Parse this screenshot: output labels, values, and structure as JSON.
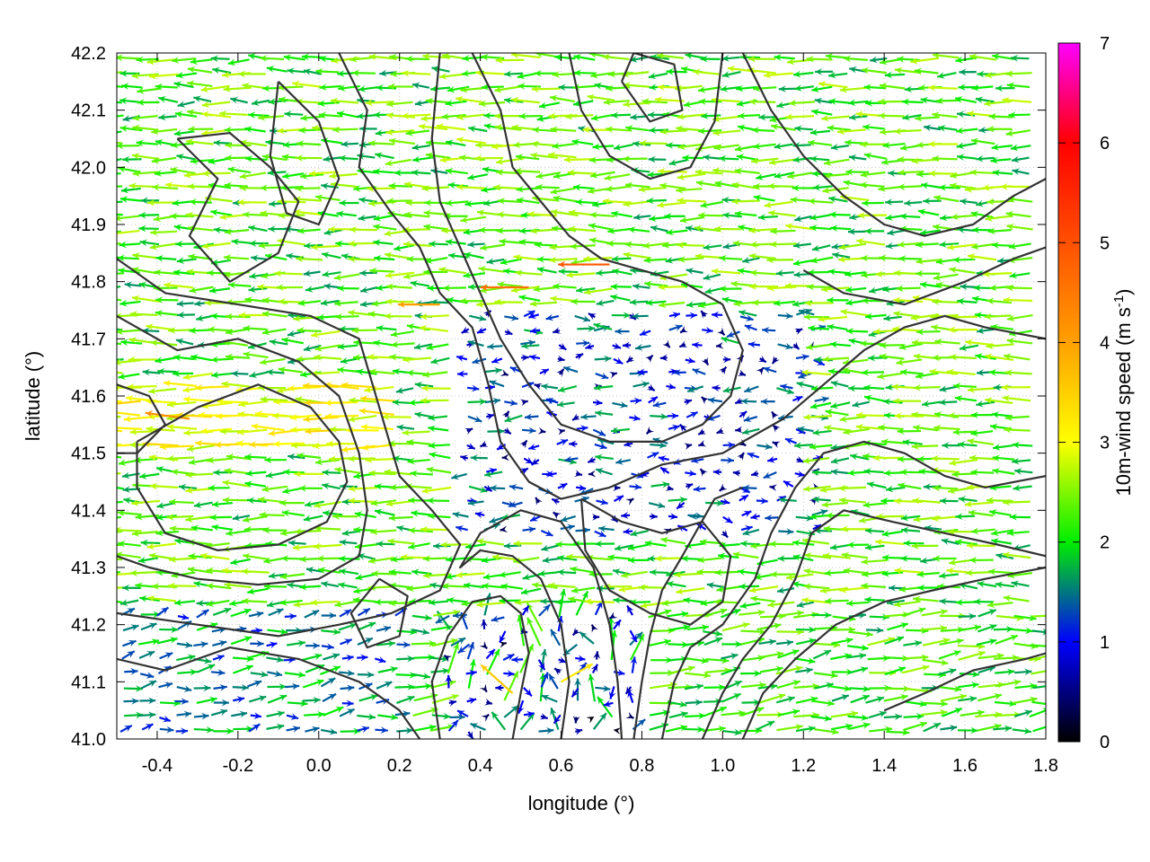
{
  "chart_data": {
    "type": "vector-field",
    "xlabel": "longitude (°)",
    "ylabel": "latitude (°)",
    "xlim": [
      -0.5,
      1.8
    ],
    "ylim": [
      41.0,
      42.2
    ],
    "x_ticks": [
      "-0.4",
      "-0.2",
      "0.0",
      "0.2",
      "0.4",
      "0.6",
      "0.8",
      "1.0",
      "1.2",
      "1.4",
      "1.6",
      "1.8"
    ],
    "y_ticks": [
      "41.0",
      "41.1",
      "41.2",
      "41.3",
      "41.4",
      "41.5",
      "41.6",
      "41.7",
      "41.8",
      "41.9",
      "42.0",
      "42.1",
      "42.2"
    ],
    "grid": true,
    "colorbar": {
      "label_main": "10m-wind speed (m s",
      "label_exp": "-1",
      "label_close": ")",
      "range": [
        0,
        7
      ],
      "ticks": [
        "0",
        "1",
        "2",
        "3",
        "4",
        "5",
        "6",
        "7"
      ],
      "palette": [
        {
          "value": 0,
          "color": "#000000"
        },
        {
          "value": 1,
          "color": "#0000ff"
        },
        {
          "value": 2,
          "color": "#00ee00"
        },
        {
          "value": 3,
          "color": "#ffff00"
        },
        {
          "value": 4,
          "color": "#ffa000"
        },
        {
          "value": 5,
          "color": "#ff5000"
        },
        {
          "value": 6,
          "color": "#ff0000"
        },
        {
          "value": 7,
          "color": "#ff00ff"
        }
      ]
    },
    "contour_color": "#333333",
    "contours": [
      [
        [
          -0.45,
          41.52
        ],
        [
          -0.3,
          41.58
        ],
        [
          -0.15,
          41.62
        ],
        [
          -0.02,
          41.58
        ],
        [
          0.05,
          41.52
        ],
        [
          0.07,
          41.45
        ],
        [
          0.02,
          41.38
        ],
        [
          -0.1,
          41.34
        ],
        [
          -0.25,
          41.33
        ],
        [
          -0.38,
          41.36
        ],
        [
          -0.45,
          41.44
        ],
        [
          -0.45,
          41.52
        ]
      ],
      [
        [
          -0.5,
          41.74
        ],
        [
          -0.35,
          41.68
        ],
        [
          -0.2,
          41.7
        ],
        [
          -0.05,
          41.66
        ],
        [
          0.05,
          41.6
        ],
        [
          0.1,
          41.5
        ],
        [
          0.12,
          41.4
        ],
        [
          0.1,
          41.32
        ],
        [
          0.0,
          41.28
        ],
        [
          -0.15,
          41.27
        ],
        [
          -0.3,
          41.28
        ],
        [
          -0.42,
          41.3
        ],
        [
          -0.5,
          41.32
        ]
      ],
      [
        [
          -0.5,
          41.84
        ],
        [
          -0.38,
          41.78
        ],
        [
          -0.2,
          41.76
        ],
        [
          -0.02,
          41.74
        ],
        [
          0.1,
          41.7
        ],
        [
          0.15,
          41.58
        ],
        [
          0.2,
          41.46
        ],
        [
          0.28,
          41.4
        ],
        [
          0.35,
          41.34
        ],
        [
          0.3,
          41.26
        ],
        [
          0.18,
          41.22
        ],
        [
          0.05,
          41.2
        ],
        [
          -0.1,
          41.18
        ],
        [
          -0.3,
          41.2
        ],
        [
          -0.5,
          41.22
        ]
      ],
      [
        [
          -0.5,
          41.14
        ],
        [
          -0.38,
          41.12
        ],
        [
          -0.22,
          41.16
        ],
        [
          -0.05,
          41.14
        ],
        [
          0.1,
          41.1
        ],
        [
          0.2,
          41.05
        ],
        [
          0.25,
          41.0
        ]
      ],
      [
        [
          -0.35,
          42.05
        ],
        [
          -0.25,
          41.98
        ],
        [
          -0.32,
          41.88
        ],
        [
          -0.22,
          41.8
        ],
        [
          -0.1,
          41.85
        ],
        [
          -0.05,
          41.94
        ],
        [
          -0.12,
          42.0
        ],
        [
          -0.22,
          42.06
        ],
        [
          -0.35,
          42.05
        ]
      ],
      [
        [
          -0.1,
          42.15
        ],
        [
          0.0,
          42.08
        ],
        [
          0.05,
          41.98
        ],
        [
          0.0,
          41.9
        ],
        [
          -0.08,
          41.92
        ],
        [
          -0.12,
          42.02
        ],
        [
          -0.1,
          42.15
        ]
      ],
      [
        [
          0.05,
          42.2
        ],
        [
          0.12,
          42.1
        ],
        [
          0.1,
          42.0
        ],
        [
          0.18,
          41.92
        ],
        [
          0.25,
          41.86
        ],
        [
          0.3,
          41.78
        ],
        [
          0.38,
          41.72
        ],
        [
          0.42,
          41.62
        ],
        [
          0.45,
          41.52
        ],
        [
          0.52,
          41.45
        ],
        [
          0.6,
          41.42
        ],
        [
          0.72,
          41.44
        ],
        [
          0.85,
          41.48
        ],
        [
          1.0,
          41.5
        ],
        [
          1.15,
          41.56
        ],
        [
          1.25,
          41.62
        ],
        [
          1.35,
          41.68
        ],
        [
          1.45,
          41.72
        ],
        [
          1.55,
          41.74
        ],
        [
          1.65,
          41.72
        ],
        [
          1.8,
          41.7
        ]
      ],
      [
        [
          0.38,
          42.2
        ],
        [
          0.45,
          42.1
        ],
        [
          0.48,
          42.0
        ],
        [
          0.55,
          41.94
        ],
        [
          0.62,
          41.88
        ],
        [
          0.7,
          41.84
        ],
        [
          0.8,
          41.82
        ],
        [
          0.9,
          41.8
        ],
        [
          1.0,
          41.76
        ],
        [
          1.05,
          41.68
        ],
        [
          1.02,
          41.6
        ],
        [
          0.95,
          41.55
        ],
        [
          0.85,
          41.52
        ],
        [
          0.72,
          41.52
        ],
        [
          0.6,
          41.55
        ],
        [
          0.52,
          41.62
        ],
        [
          0.45,
          41.7
        ],
        [
          0.4,
          41.78
        ],
        [
          0.35,
          41.86
        ],
        [
          0.3,
          41.94
        ],
        [
          0.28,
          42.05
        ],
        [
          0.3,
          42.2
        ]
      ],
      [
        [
          0.62,
          42.2
        ],
        [
          0.65,
          42.1
        ],
        [
          0.72,
          42.02
        ],
        [
          0.82,
          41.98
        ],
        [
          0.92,
          42.0
        ],
        [
          0.98,
          42.08
        ],
        [
          1.0,
          42.2
        ]
      ],
      [
        [
          0.75,
          42.15
        ],
        [
          0.82,
          42.08
        ],
        [
          0.9,
          42.1
        ],
        [
          0.88,
          42.18
        ],
        [
          0.78,
          42.2
        ],
        [
          0.75,
          42.15
        ]
      ],
      [
        [
          1.05,
          42.2
        ],
        [
          1.12,
          42.1
        ],
        [
          1.2,
          42.02
        ],
        [
          1.3,
          41.95
        ],
        [
          1.4,
          41.9
        ],
        [
          1.5,
          41.88
        ],
        [
          1.62,
          41.9
        ],
        [
          1.72,
          41.95
        ],
        [
          1.8,
          41.98
        ]
      ],
      [
        [
          1.2,
          41.82
        ],
        [
          1.3,
          41.78
        ],
        [
          1.45,
          41.76
        ],
        [
          1.6,
          41.8
        ],
        [
          1.72,
          41.84
        ],
        [
          1.8,
          41.86
        ]
      ],
      [
        [
          0.65,
          41.42
        ],
        [
          0.75,
          41.38
        ],
        [
          0.85,
          41.36
        ],
        [
          0.95,
          41.38
        ],
        [
          1.02,
          41.32
        ],
        [
          1.0,
          41.24
        ],
        [
          0.92,
          41.2
        ],
        [
          0.82,
          41.22
        ],
        [
          0.72,
          41.26
        ],
        [
          0.66,
          41.33
        ],
        [
          0.65,
          41.42
        ]
      ],
      [
        [
          0.48,
          41.0
        ],
        [
          0.5,
          41.08
        ],
        [
          0.52,
          41.15
        ],
        [
          0.5,
          41.22
        ],
        [
          0.45,
          41.25
        ],
        [
          0.38,
          41.24
        ],
        [
          0.32,
          41.18
        ],
        [
          0.28,
          41.1
        ],
        [
          0.3,
          41.0
        ]
      ],
      [
        [
          0.6,
          41.0
        ],
        [
          0.62,
          41.1
        ],
        [
          0.6,
          41.2
        ],
        [
          0.55,
          41.28
        ],
        [
          0.48,
          41.32
        ],
        [
          0.4,
          41.33
        ],
        [
          0.35,
          41.3
        ],
        [
          0.4,
          41.36
        ],
        [
          0.5,
          41.4
        ],
        [
          0.6,
          41.38
        ],
        [
          0.68,
          41.3
        ],
        [
          0.72,
          41.2
        ],
        [
          0.74,
          41.1
        ],
        [
          0.75,
          41.0
        ]
      ],
      [
        [
          0.78,
          41.0
        ],
        [
          0.8,
          41.1
        ],
        [
          0.82,
          41.18
        ],
        [
          0.85,
          41.26
        ],
        [
          0.9,
          41.32
        ],
        [
          0.98,
          41.42
        ],
        [
          1.05,
          41.44
        ]
      ],
      [
        [
          0.85,
          41.0
        ],
        [
          0.88,
          41.1
        ],
        [
          0.92,
          41.16
        ],
        [
          1.0,
          41.2
        ],
        [
          1.08,
          41.28
        ],
        [
          1.12,
          41.36
        ],
        [
          1.18,
          41.44
        ],
        [
          1.25,
          41.5
        ],
        [
          1.35,
          41.52
        ],
        [
          1.45,
          41.5
        ],
        [
          1.55,
          41.46
        ],
        [
          1.65,
          41.44
        ],
        [
          1.8,
          41.46
        ]
      ],
      [
        [
          0.95,
          41.0
        ],
        [
          1.0,
          41.08
        ],
        [
          1.05,
          41.14
        ],
        [
          1.12,
          41.2
        ],
        [
          1.18,
          41.28
        ],
        [
          1.22,
          41.36
        ],
        [
          1.3,
          41.4
        ],
        [
          1.42,
          41.38
        ],
        [
          1.55,
          41.36
        ],
        [
          1.68,
          41.34
        ],
        [
          1.8,
          41.32
        ]
      ],
      [
        [
          1.05,
          41.0
        ],
        [
          1.1,
          41.08
        ],
        [
          1.18,
          41.14
        ],
        [
          1.28,
          41.2
        ],
        [
          1.4,
          41.24
        ],
        [
          1.52,
          41.26
        ],
        [
          1.65,
          41.28
        ],
        [
          1.8,
          41.3
        ]
      ],
      [
        [
          1.4,
          41.05
        ],
        [
          1.5,
          41.08
        ],
        [
          1.62,
          41.12
        ],
        [
          1.75,
          41.14
        ],
        [
          1.8,
          41.15
        ]
      ],
      [
        [
          -0.5,
          41.62
        ],
        [
          -0.42,
          41.6
        ],
        [
          -0.38,
          41.55
        ],
        [
          -0.45,
          41.5
        ],
        [
          -0.5,
          41.5
        ]
      ],
      [
        [
          0.15,
          41.28
        ],
        [
          0.22,
          41.25
        ],
        [
          0.2,
          41.18
        ],
        [
          0.12,
          41.16
        ],
        [
          0.08,
          41.22
        ],
        [
          0.15,
          41.28
        ]
      ]
    ],
    "arrow_field": {
      "dx": 0.045,
      "dy": 0.025,
      "scale_deg_per_ms": 0.026
    },
    "highlighted_arrows": [
      {
        "lon": 0.72,
        "lat": 41.83,
        "u": -4.9,
        "v": 0.0
      },
      {
        "lon": 0.52,
        "lat": 41.79,
        "u": -4.6,
        "v": 0.0
      },
      {
        "lon": 0.48,
        "lat": 41.08,
        "u": -3.0,
        "v": 1.9
      },
      {
        "lon": 0.6,
        "lat": 41.1,
        "u": 3.0,
        "v": 1.2
      },
      {
        "lon": -0.32,
        "lat": 41.56,
        "u": -4.2,
        "v": 0.4
      },
      {
        "lon": 0.3,
        "lat": 41.76,
        "u": -4.0,
        "v": 0.0
      }
    ]
  }
}
